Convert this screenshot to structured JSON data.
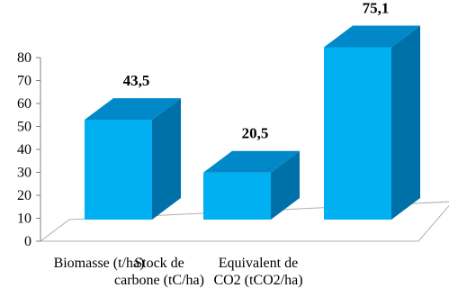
{
  "chart_data": {
    "type": "bar",
    "style": "3d",
    "categories": [
      [
        "Biomasse (t/ha)"
      ],
      [
        "Stock de",
        "carbone (tC/ha)"
      ],
      [
        "Equivalent de",
        "CO2 (tCO2/ha)"
      ]
    ],
    "values": [
      43.5,
      20.5,
      75.1
    ],
    "data_labels": [
      "43,5",
      "20,5",
      "75,1"
    ],
    "yticks": [
      0,
      10,
      20,
      30,
      40,
      50,
      60,
      70,
      80
    ],
    "ylim": [
      0,
      80
    ],
    "grid": false,
    "legend": "none",
    "colors": {
      "front": "#00B0F0",
      "side": "#0071A8",
      "top": "#0088C8",
      "axis": "#808080"
    }
  }
}
